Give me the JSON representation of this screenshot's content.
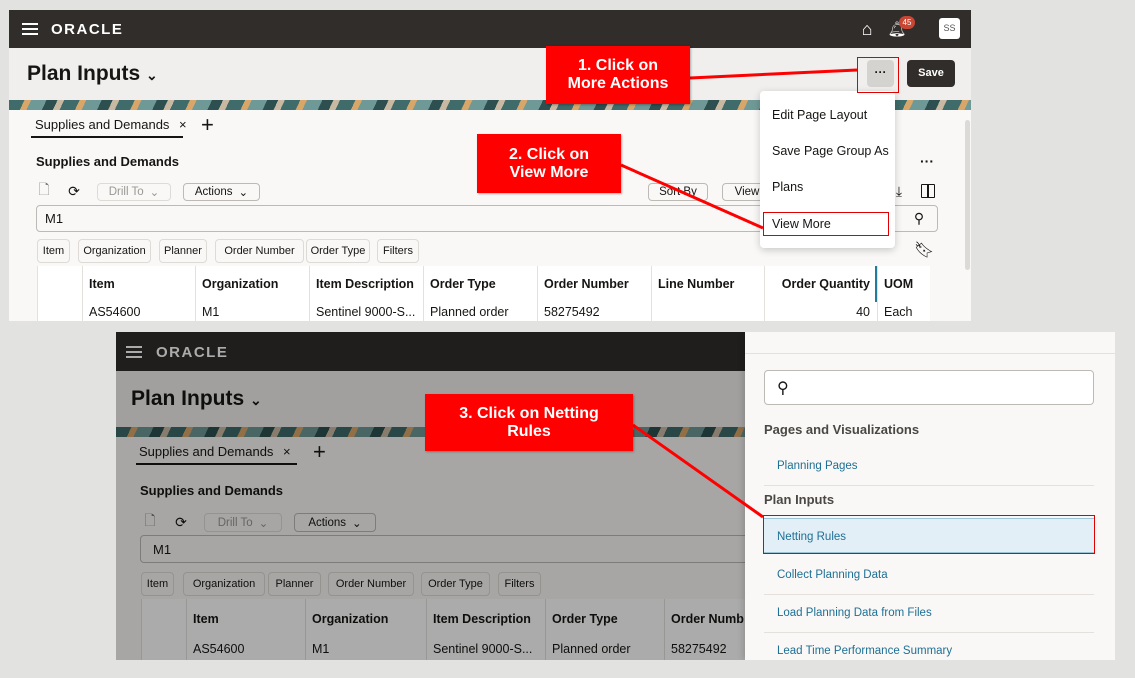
{
  "top_screen": {
    "logo": "ORACLE",
    "notification_count": "45",
    "avatar": "SS",
    "page_title": "Plan Inputs",
    "save_label": "Save",
    "more_actions_label": "···",
    "tab_label": "Supplies and Demands",
    "section_title": "Supplies and Demands",
    "drill_to": "Drill To",
    "actions": "Actions",
    "sort_by": "Sort By",
    "view": "View",
    "search_value": "M1",
    "chips": [
      "Item",
      "Organization",
      "Planner",
      "Order Number",
      "Order Type",
      "Filters"
    ],
    "columns": [
      "Item",
      "Organization",
      "Item Description",
      "Order Type",
      "Order Number",
      "Line Number",
      "Order Quantity",
      "UOM"
    ],
    "row": [
      "AS54600",
      "M1",
      "Sentinel 9000-S...",
      "Planned order",
      "58275492",
      "",
      "40",
      "Each"
    ],
    "menu": [
      "Edit Page Layout",
      "Save Page Group As",
      "Plans",
      "View More"
    ]
  },
  "bottom_screen": {
    "logo": "ORACLE",
    "page_title": "Plan Inputs",
    "tab_label": "Supplies and Demands",
    "section_title": "Supplies and Demands",
    "drill_to": "Drill To",
    "actions": "Actions",
    "search_value": "M1",
    "chips": [
      "Item",
      "Organization",
      "Planner",
      "Order Number",
      "Order Type",
      "Filters"
    ],
    "columns": [
      "Item",
      "Organization",
      "Item Description",
      "Order Type",
      "Order Numb"
    ],
    "row": [
      "AS54600",
      "M1",
      "Sentinel 9000-S...",
      "Planned order",
      "58275492"
    ],
    "drawer": {
      "search_placeholder": "",
      "heading_pages": "Pages and Visualizations",
      "planning_pages": "Planning Pages",
      "heading_plan_inputs": "Plan Inputs",
      "items": [
        "Netting Rules",
        "Collect Planning Data",
        "Load Planning Data from Files",
        "Lead Time Performance Summary"
      ]
    }
  },
  "callouts": {
    "step1": "1. Click on More Actions",
    "step2": "2. Click on View More",
    "step3": "3. Click on Netting Rules"
  },
  "colors": {
    "callout": "#ff0000",
    "header": "#312d2a",
    "link": "#1e6f95",
    "badge": "#c74634"
  }
}
